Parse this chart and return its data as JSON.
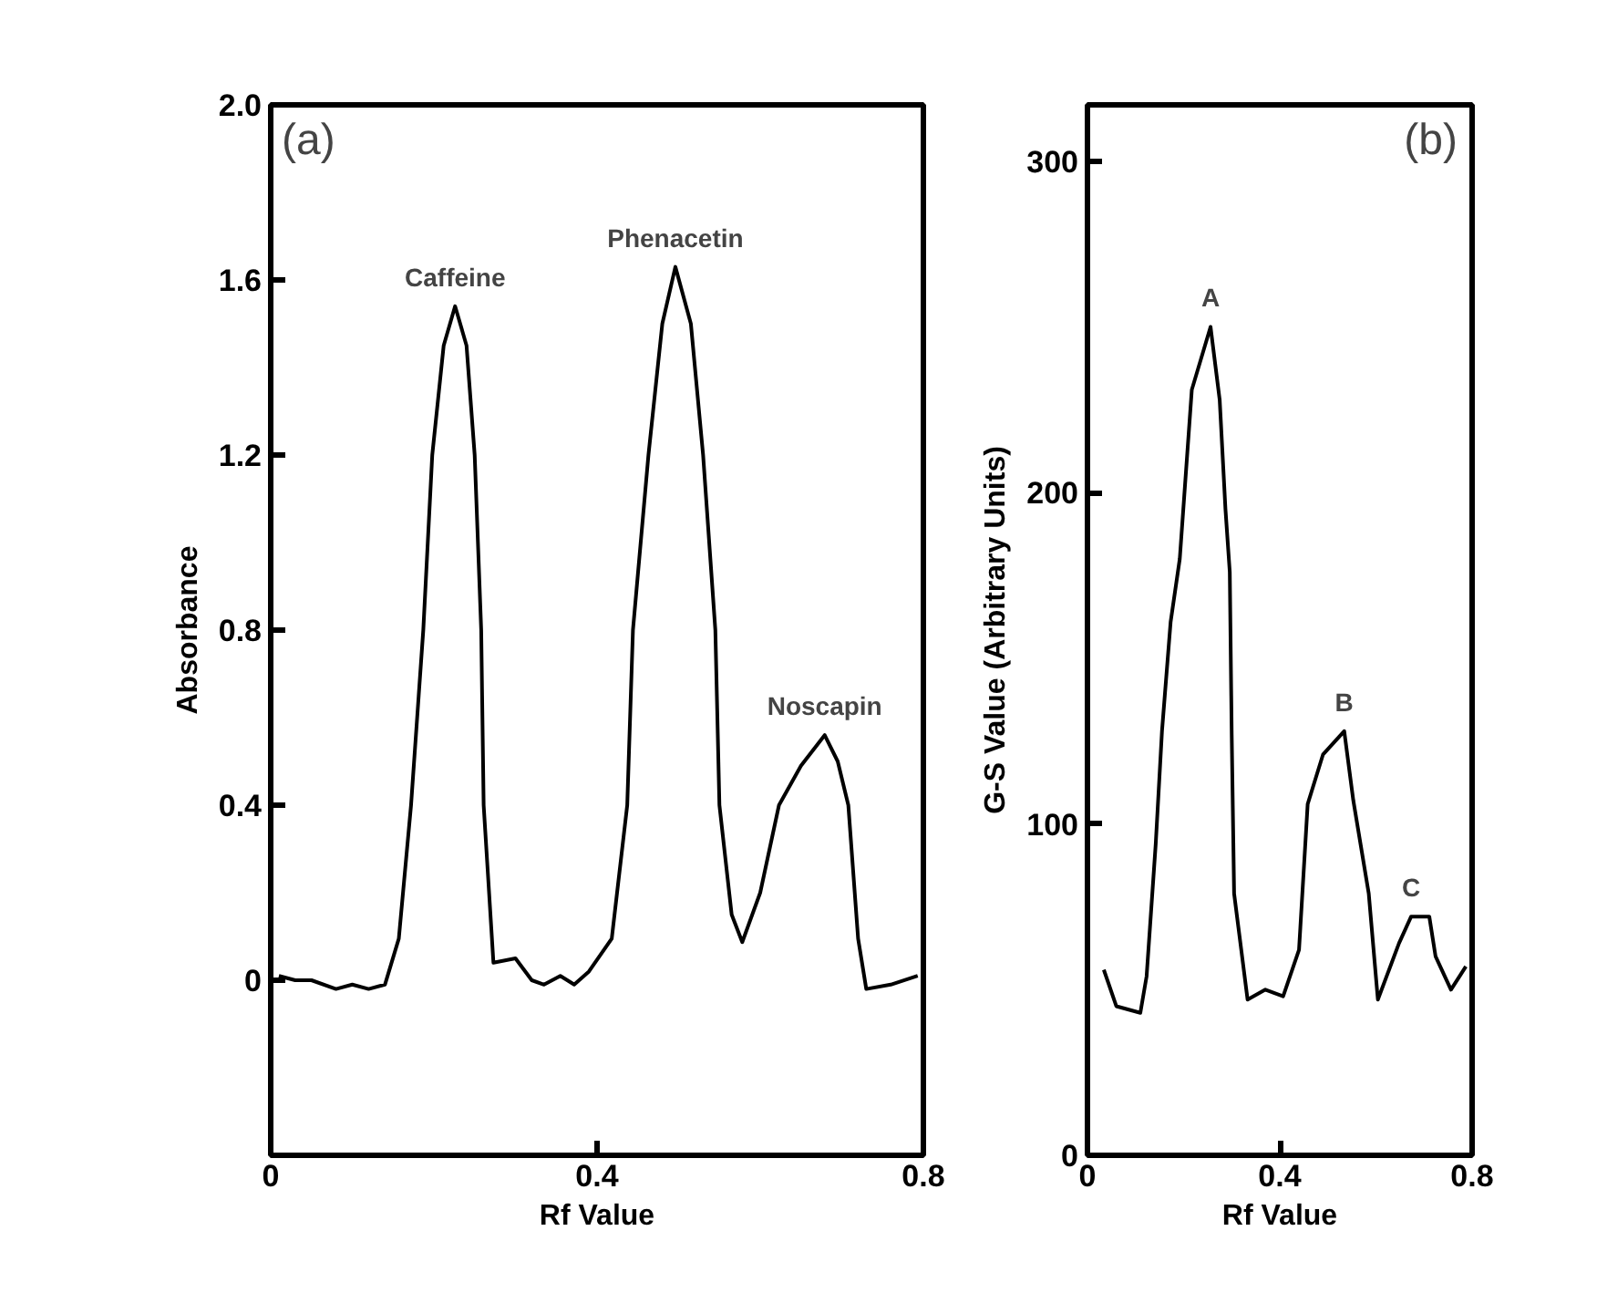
{
  "chart_data": [
    {
      "type": "line",
      "title": "(a)",
      "xlabel": "Rf Value",
      "ylabel": "Absorbance",
      "xlim": [
        0,
        0.8
      ],
      "ylim": [
        -0.4,
        2.0
      ],
      "xticks": [
        0,
        0.4,
        0.8
      ],
      "yticks": [
        0,
        0.4,
        0.8,
        1.2,
        1.6,
        {
          "value": 2,
          "label": "2.0"
        }
      ],
      "series": [
        {
          "color": "#000000",
          "x": [
            0.01,
            0.03,
            0.05,
            0.08,
            0.1,
            0.12,
            0.14,
            0.157,
            0.172,
            0.187,
            0.198,
            0.212,
            0.226,
            0.24,
            0.25,
            0.258,
            0.261,
            0.273,
            0.3,
            0.32,
            0.335,
            0.355,
            0.372,
            0.39,
            0.418,
            0.437,
            0.444,
            0.463,
            0.48,
            0.496,
            0.515,
            0.53,
            0.545,
            0.55,
            0.565,
            0.578,
            0.6,
            0.623,
            0.65,
            0.679,
            0.695,
            0.708,
            0.72,
            0.73,
            0.76,
            0.793
          ],
          "values": [
            0.01,
            0.0,
            0.0,
            -0.02,
            -0.01,
            -0.02,
            -0.01,
            0.095,
            0.4,
            0.8,
            1.2,
            1.45,
            1.54,
            1.45,
            1.2,
            0.8,
            0.4,
            0.04,
            0.05,
            0.0,
            -0.01,
            0.01,
            -0.01,
            0.02,
            0.095,
            0.4,
            0.8,
            1.2,
            1.5,
            1.63,
            1.5,
            1.2,
            0.8,
            0.4,
            0.15,
            0.087,
            0.2,
            0.4,
            0.49,
            0.56,
            0.5,
            0.4,
            0.095,
            -0.02,
            -0.01,
            0.01
          ]
        }
      ],
      "annotations": [
        {
          "text": "Caffeine",
          "x": 0.226,
          "y": 1.54
        },
        {
          "text": "Phenacetin",
          "x": 0.496,
          "y": 1.63
        },
        {
          "text": "Noscapin",
          "x": 0.679,
          "y": 0.56
        }
      ]
    },
    {
      "type": "line",
      "title": "(b)",
      "xlabel": "Rf Value",
      "ylabel": "G-S Value (Arbitrary Units)",
      "xlim": [
        0,
        0.8
      ],
      "ylim": [
        0,
        317
      ],
      "xticks": [
        0,
        0.4,
        0.8
      ],
      "yticks": [
        0,
        100,
        200,
        300
      ],
      "series": [
        {
          "color": "#000000",
          "x": [
            0.034,
            0.06,
            0.11,
            0.123,
            0.142,
            0.155,
            0.173,
            0.192,
            0.217,
            0.256,
            0.275,
            0.287,
            0.296,
            0.3,
            0.305,
            0.333,
            0.37,
            0.407,
            0.44,
            0.458,
            0.49,
            0.534,
            0.553,
            0.585,
            0.604,
            0.648,
            0.673,
            0.711,
            0.724,
            0.756,
            0.787
          ],
          "values": [
            56,
            45,
            43,
            54,
            94,
            128,
            161,
            180,
            231,
            250,
            228,
            195,
            176,
            127,
            79,
            47,
            50,
            48,
            62,
            106,
            121,
            128,
            107,
            79,
            47,
            64,
            72,
            72,
            60,
            50,
            57
          ]
        }
      ],
      "annotations": [
        {
          "text": "A",
          "x": 0.256,
          "y": 250
        },
        {
          "text": "B",
          "x": 0.534,
          "y": 128
        },
        {
          "text": "C",
          "x": 0.673,
          "y": 72
        }
      ]
    }
  ]
}
